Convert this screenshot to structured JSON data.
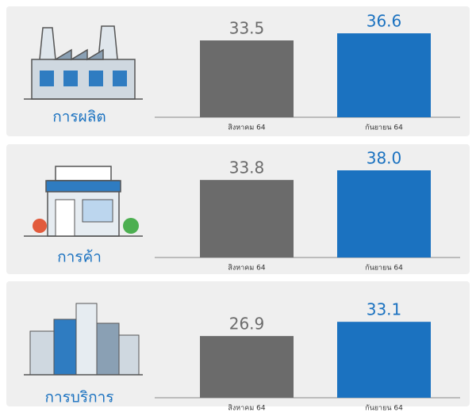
{
  "chart_data": [
    {
      "type": "bar",
      "title": "การผลิต",
      "categories": [
        "สิงหาคม 64",
        "กันยายน 64"
      ],
      "values": [
        33.5,
        36.6
      ],
      "value_labels": [
        "33.5",
        "36.6"
      ],
      "colors": [
        "#6b6b6b",
        "#1b72c0"
      ]
    },
    {
      "type": "bar",
      "title": "การค้า",
      "categories": [
        "สิงหาคม 64",
        "กันยายน 64"
      ],
      "values": [
        33.8,
        38.0
      ],
      "value_labels": [
        "33.8",
        "38.0"
      ],
      "colors": [
        "#6b6b6b",
        "#1b72c0"
      ]
    },
    {
      "type": "bar",
      "title": "การบริการ",
      "categories": [
        "สิงหาคม 64",
        "กันยายน 64"
      ],
      "values": [
        26.9,
        33.1
      ],
      "value_labels": [
        "26.9",
        "33.1"
      ],
      "colors": [
        "#6b6b6b",
        "#1b72c0"
      ]
    }
  ]
}
